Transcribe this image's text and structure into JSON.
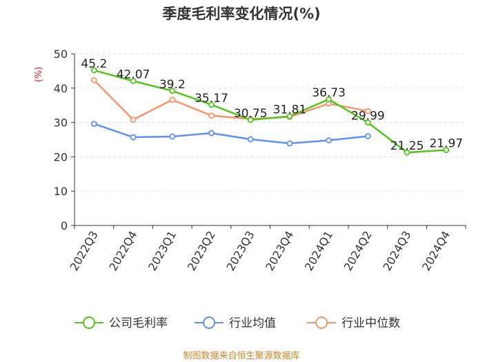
{
  "title": "季度毛利率变化情况(%)",
  "source": "制图数据来自恒生聚源数据库",
  "chart_data": {
    "type": "line",
    "title": "季度毛利率变化情况(%)",
    "ylabel": "(%)",
    "xlabel": "",
    "categories": [
      "2022Q3",
      "2022Q4",
      "2023Q1",
      "2023Q2",
      "2023Q3",
      "2023Q4",
      "2024Q1",
      "2024Q2",
      "2024Q3",
      "2024Q4"
    ],
    "ylim": [
      0,
      50
    ],
    "yticks": [
      0,
      10,
      20,
      30,
      40,
      50
    ],
    "grid": "horizontal dashed",
    "legend_position": "bottom",
    "series": [
      {
        "name": "公司毛利率",
        "color": "#52c41a",
        "values": [
          45.2,
          42.07,
          39.2,
          35.17,
          30.75,
          31.81,
          36.73,
          29.99,
          21.25,
          21.97
        ],
        "labels": [
          "45.2",
          "42.07",
          "39.2",
          "35.17",
          "30.75",
          "31.81",
          "36.73",
          "29.99",
          "21.25",
          "21.97"
        ]
      },
      {
        "name": "行业均值",
        "color": "#5b8ff9",
        "values": [
          29.6,
          25.7,
          25.9,
          26.9,
          25.1,
          23.9,
          24.8,
          26.0,
          null,
          null
        ]
      },
      {
        "name": "行业中位数",
        "color": "#f6936a",
        "values": [
          42.3,
          30.8,
          36.6,
          32.0,
          31.0,
          31.6,
          35.5,
          33.3,
          null,
          null
        ]
      }
    ]
  }
}
